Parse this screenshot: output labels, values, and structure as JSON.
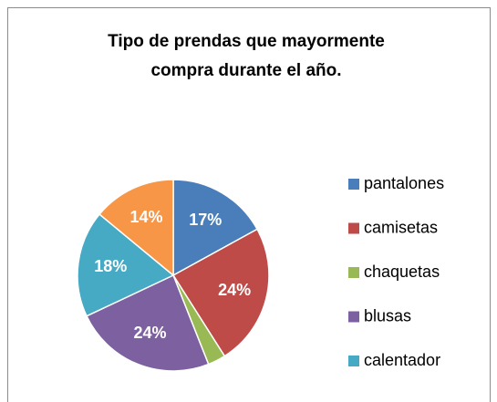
{
  "chart_data": {
    "type": "pie",
    "title": "Tipo de prendas que mayormente compra durante el año.",
    "categories": [
      "pantalones",
      "camisetas",
      "chaquetas",
      "blusas",
      "calentador",
      null
    ],
    "values": [
      17,
      24,
      3,
      24,
      18,
      14
    ],
    "value_labels": [
      "17%",
      "24%",
      null,
      "24%",
      "18%",
      "14%"
    ],
    "colors": [
      "#4a7ebb",
      "#be4b48",
      "#98b954",
      "#7d60a0",
      "#46aac5",
      "#f79646"
    ],
    "legend": "right"
  }
}
